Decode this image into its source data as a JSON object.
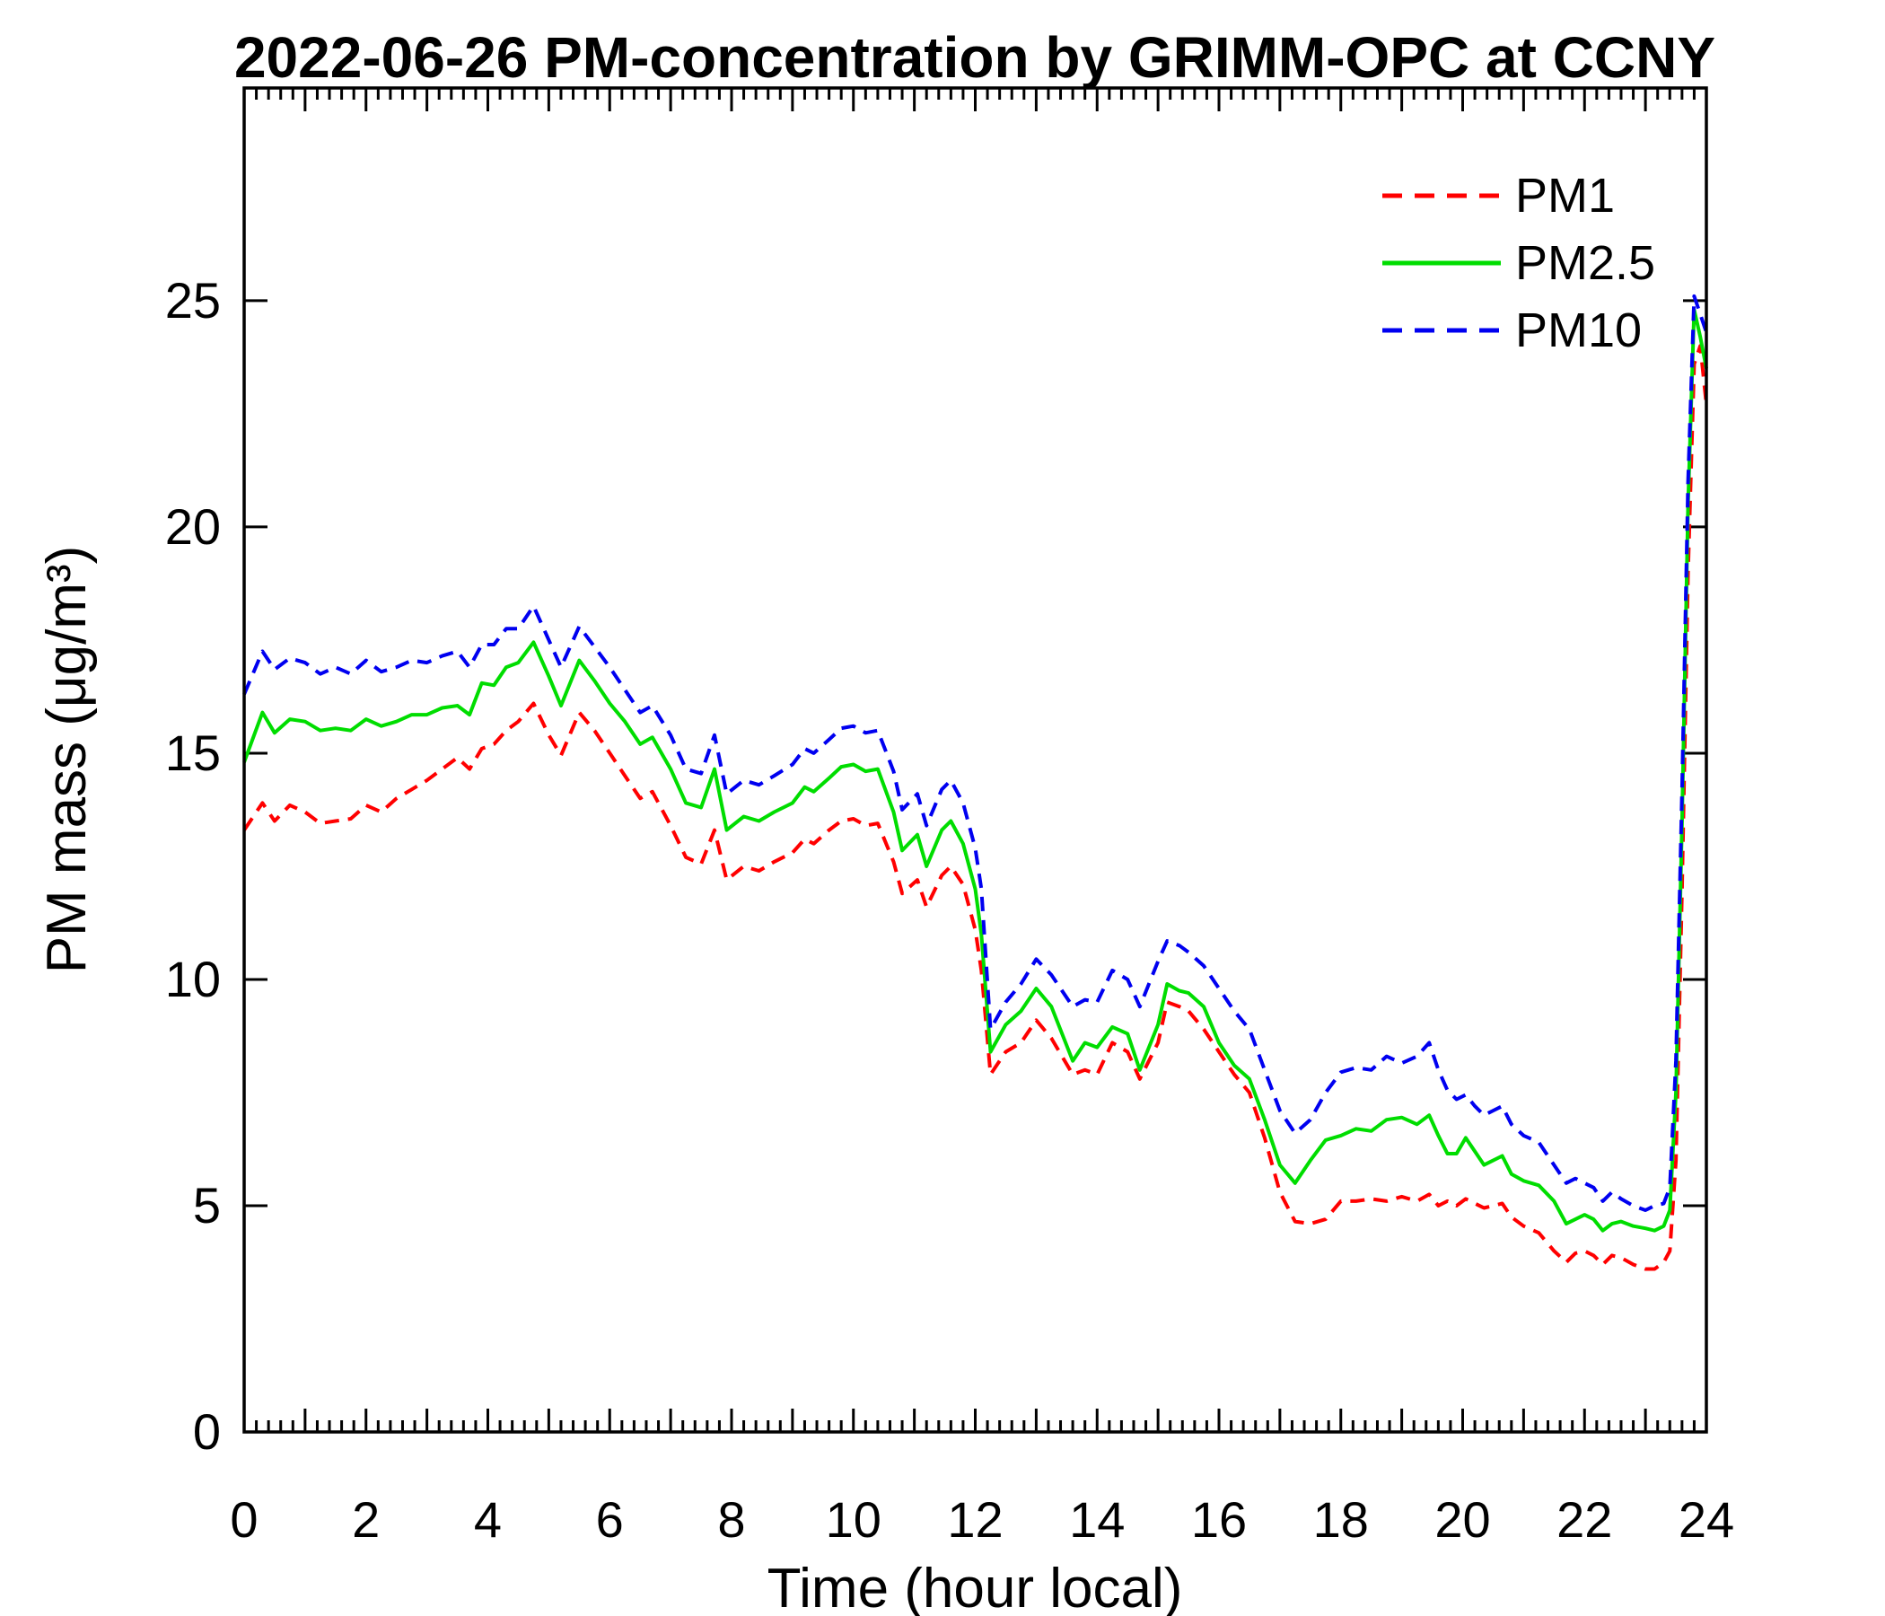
{
  "page": {
    "background": "#ffffff"
  },
  "chart_data": {
    "type": "line",
    "title": "2022-06-26 PM-concentration by GRIMM-OPC at CCNY",
    "xlabel": "Time (hour local)",
    "ylabel": "PM mass (μg/m³)",
    "xlim": [
      0,
      24
    ],
    "ylim": [
      0,
      29.7
    ],
    "xticks": [
      0,
      2,
      4,
      6,
      8,
      10,
      12,
      14,
      16,
      18,
      20,
      22,
      24
    ],
    "yticks": [
      0,
      5,
      10,
      15,
      20,
      25
    ],
    "x_minor_step": 0.2,
    "grid": false,
    "legend_position": "top-right",
    "legend_frame": false,
    "axis_color": "#000000",
    "x": [
      0,
      0.3,
      0.5,
      0.75,
      1,
      1.25,
      1.5,
      1.75,
      2,
      2.25,
      2.5,
      2.75,
      3,
      3.25,
      3.5,
      3.7,
      3.9,
      4.1,
      4.3,
      4.5,
      4.75,
      5,
      5.2,
      5.5,
      5.75,
      6,
      6.25,
      6.5,
      6.7,
      7,
      7.25,
      7.5,
      7.72,
      7.92,
      8.2,
      8.45,
      8.7,
      9,
      9.2,
      9.35,
      9.6,
      9.8,
      10,
      10.2,
      10.4,
      10.66,
      10.8,
      11.05,
      11.2,
      11.45,
      11.6,
      11.8,
      12,
      12.1,
      12.25,
      12.5,
      12.75,
      13,
      13.25,
      13.6,
      13.8,
      14,
      14.25,
      14.5,
      14.7,
      15,
      15.15,
      15.35,
      15.5,
      15.75,
      16,
      16.25,
      16.5,
      16.75,
      17,
      17.25,
      17.5,
      17.75,
      18,
      18.25,
      18.5,
      18.75,
      19,
      19.25,
      19.45,
      19.6,
      19.75,
      19.9,
      20.05,
      20.2,
      20.35,
      20.5,
      20.65,
      20.8,
      21,
      21.25,
      21.5,
      21.7,
      21.85,
      22,
      22.15,
      22.3,
      22.45,
      22.6,
      22.8,
      23,
      23.15,
      23.3,
      23.4,
      23.5,
      23.6,
      23.7,
      23.8,
      23.9,
      24
    ],
    "series": [
      {
        "name": "PM1",
        "color": "#ff0000",
        "style": "dashed",
        "values": [
          13.3,
          13.9,
          13.5,
          13.85,
          13.7,
          13.45,
          13.5,
          13.55,
          13.85,
          13.7,
          14.0,
          14.2,
          14.4,
          14.65,
          14.9,
          14.65,
          15.1,
          15.2,
          15.5,
          15.7,
          16.1,
          15.4,
          14.95,
          15.9,
          15.5,
          15.0,
          14.5,
          14.0,
          14.15,
          13.4,
          12.7,
          12.55,
          13.3,
          12.2,
          12.5,
          12.4,
          12.6,
          12.8,
          13.1,
          13.0,
          13.3,
          13.5,
          13.55,
          13.4,
          13.45,
          12.6,
          11.9,
          12.2,
          11.6,
          12.3,
          12.5,
          12.1,
          11.1,
          10.2,
          7.9,
          8.4,
          8.6,
          9.1,
          8.7,
          7.9,
          8.0,
          7.9,
          8.6,
          8.4,
          7.8,
          8.6,
          9.5,
          9.4,
          9.3,
          8.9,
          8.4,
          7.9,
          7.5,
          6.5,
          5.3,
          4.65,
          4.6,
          4.7,
          5.1,
          5.1,
          5.15,
          5.1,
          5.2,
          5.1,
          5.25,
          5.0,
          5.1,
          5.0,
          5.15,
          5.05,
          4.95,
          5.0,
          5.05,
          4.75,
          4.55,
          4.4,
          4.0,
          3.75,
          3.95,
          4.0,
          3.9,
          3.7,
          3.9,
          3.85,
          3.7,
          3.6,
          3.6,
          3.75,
          4.0,
          6.0,
          12.0,
          19.0,
          23.6,
          24.0,
          22.7
        ]
      },
      {
        "name": "PM2.5",
        "color": "#00dd00",
        "style": "solid",
        "values": [
          14.8,
          15.9,
          15.45,
          15.75,
          15.7,
          15.5,
          15.55,
          15.5,
          15.75,
          15.6,
          15.7,
          15.85,
          15.85,
          16.0,
          16.05,
          15.85,
          16.55,
          16.5,
          16.9,
          17.0,
          17.45,
          16.7,
          16.05,
          17.05,
          16.6,
          16.1,
          15.7,
          15.2,
          15.35,
          14.65,
          13.9,
          13.8,
          14.65,
          13.3,
          13.6,
          13.5,
          13.7,
          13.9,
          14.25,
          14.15,
          14.45,
          14.7,
          14.75,
          14.6,
          14.65,
          13.7,
          12.85,
          13.2,
          12.5,
          13.3,
          13.5,
          13.0,
          12.0,
          11.0,
          8.4,
          9.0,
          9.3,
          9.8,
          9.4,
          8.2,
          8.6,
          8.5,
          8.95,
          8.8,
          8.0,
          9.0,
          9.9,
          9.75,
          9.7,
          9.4,
          8.6,
          8.1,
          7.8,
          6.9,
          5.9,
          5.5,
          6.0,
          6.45,
          6.55,
          6.7,
          6.65,
          6.9,
          6.95,
          6.8,
          7.0,
          6.55,
          6.15,
          6.15,
          6.5,
          6.2,
          5.9,
          6.0,
          6.1,
          5.7,
          5.55,
          5.45,
          5.1,
          4.6,
          4.7,
          4.8,
          4.7,
          4.45,
          4.6,
          4.65,
          4.55,
          4.5,
          4.45,
          4.55,
          4.9,
          7.5,
          13.5,
          20.5,
          24.8,
          24.2,
          23.5
        ]
      },
      {
        "name": "PM10",
        "color": "#0000f0",
        "style": "dashed",
        "values": [
          16.3,
          17.25,
          16.85,
          17.1,
          17.0,
          16.75,
          16.9,
          16.75,
          17.05,
          16.8,
          16.9,
          17.05,
          17.0,
          17.15,
          17.25,
          16.9,
          17.4,
          17.4,
          17.75,
          17.75,
          18.25,
          17.5,
          16.9,
          17.8,
          17.35,
          16.9,
          16.4,
          15.9,
          16.05,
          15.4,
          14.65,
          14.55,
          15.4,
          14.1,
          14.4,
          14.3,
          14.5,
          14.75,
          15.1,
          15.0,
          15.3,
          15.55,
          15.6,
          15.45,
          15.5,
          14.6,
          13.75,
          14.1,
          13.4,
          14.2,
          14.4,
          13.9,
          12.9,
          12.0,
          8.9,
          9.5,
          9.9,
          10.45,
          10.1,
          9.4,
          9.55,
          9.5,
          10.2,
          10.0,
          9.4,
          10.4,
          10.85,
          10.75,
          10.6,
          10.3,
          9.8,
          9.3,
          8.9,
          8.0,
          7.1,
          6.6,
          6.9,
          7.5,
          7.95,
          8.05,
          8.0,
          8.3,
          8.15,
          8.3,
          8.6,
          8.0,
          7.55,
          7.35,
          7.45,
          7.2,
          7.0,
          7.1,
          7.2,
          6.8,
          6.55,
          6.4,
          5.9,
          5.5,
          5.6,
          5.5,
          5.4,
          5.1,
          5.3,
          5.15,
          5.0,
          4.9,
          5.0,
          5.05,
          5.4,
          8.2,
          14.2,
          21.0,
          25.1,
          24.7,
          24.3
        ]
      }
    ]
  }
}
